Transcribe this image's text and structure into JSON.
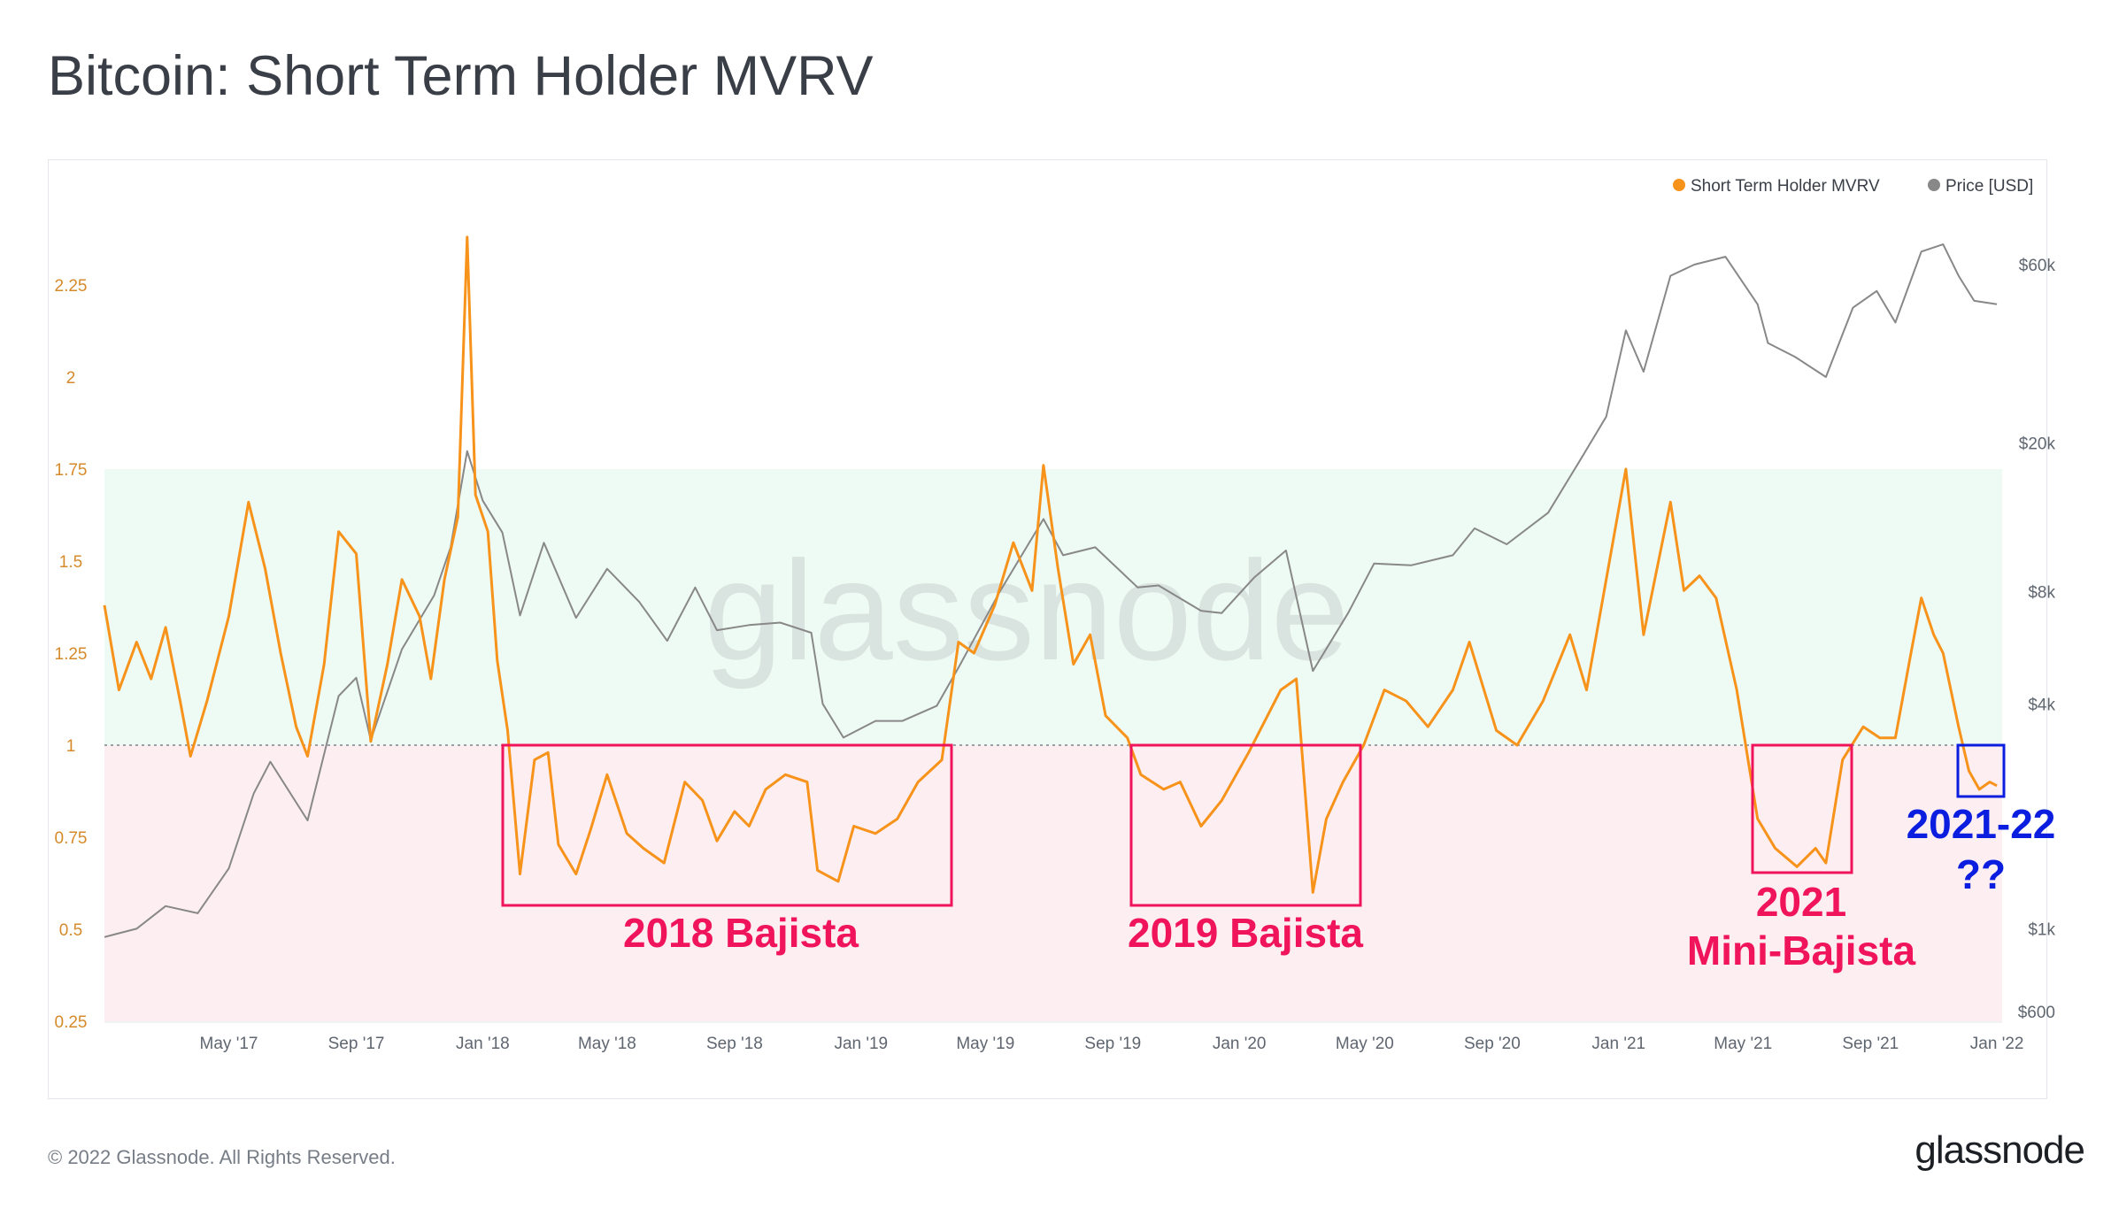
{
  "title": "Bitcoin: Short Term Holder MVRV",
  "footer": {
    "copyright": "© 2022 Glassnode. All Rights Reserved.",
    "logo": "glassnode"
  },
  "watermark": "glassnode",
  "colors": {
    "mvrv": "#f7931a",
    "price": "#888888",
    "annotation_red": "#f0145a",
    "annotation_blue": "#0b1ee0",
    "zone_green": "#eefaf4",
    "zone_red": "#fdeef2"
  },
  "legend": {
    "mvrv": "Short Term Holder MVRV",
    "price": "Price [USD]"
  },
  "annotations": {
    "a2018": "2018 Bajista",
    "a2019": "2019 Bajista",
    "a2021_1": "2021",
    "a2021_2": "Mini-Bajista",
    "a2122_1": "2021-22",
    "a2122_2": "??"
  },
  "chart_data": {
    "type": "line",
    "x_tick_labels": [
      "May '17",
      "Sep '17",
      "Jan '18",
      "May '18",
      "Sep '18",
      "Jan '19",
      "May '19",
      "Sep '19",
      "Jan '20",
      "May '20",
      "Sep '20",
      "Jan '21",
      "May '21",
      "Sep '21",
      "Jan '22"
    ],
    "y_left_ticks": [
      "2.25",
      "2",
      "1.75",
      "1.5",
      "1.25",
      "1",
      "0.75",
      "0.5",
      "0.25"
    ],
    "y_right_ticks": [
      "$60k",
      "$20k",
      "$8k",
      "$4k",
      "$1k",
      "$600"
    ],
    "ylim_left": [
      0.25,
      2.4
    ],
    "ylim_right_log_usd": [
      600,
      70000
    ],
    "zones": [
      {
        "from": 1.0,
        "to": 1.75,
        "label": ""
      },
      {
        "from": 0.25,
        "to": 1.0,
        "label": ""
      }
    ],
    "series": [
      {
        "name": "Short Term Holder MVRV",
        "axis": "left",
        "points": [
          [
            "2017-01-01",
            1.38
          ],
          [
            "2017-01-15",
            1.15
          ],
          [
            "2017-02-01",
            1.28
          ],
          [
            "2017-02-15",
            1.18
          ],
          [
            "2017-03-01",
            1.32
          ],
          [
            "2017-03-15",
            1.12
          ],
          [
            "2017-03-25",
            0.97
          ],
          [
            "2017-04-10",
            1.12
          ],
          [
            "2017-05-01",
            1.35
          ],
          [
            "2017-05-20",
            1.66
          ],
          [
            "2017-06-05",
            1.48
          ],
          [
            "2017-06-20",
            1.25
          ],
          [
            "2017-07-05",
            1.05
          ],
          [
            "2017-07-16",
            0.97
          ],
          [
            "2017-08-01",
            1.22
          ],
          [
            "2017-08-15",
            1.58
          ],
          [
            "2017-09-01",
            1.52
          ],
          [
            "2017-09-15",
            1.01
          ],
          [
            "2017-10-01",
            1.22
          ],
          [
            "2017-10-15",
            1.45
          ],
          [
            "2017-11-01",
            1.35
          ],
          [
            "2017-11-12",
            1.18
          ],
          [
            "2017-11-25",
            1.45
          ],
          [
            "2017-12-08",
            1.62
          ],
          [
            "2017-12-17",
            2.38
          ],
          [
            "2017-12-25",
            1.68
          ],
          [
            "2018-01-06",
            1.58
          ],
          [
            "2018-01-15",
            1.23
          ],
          [
            "2018-01-25",
            1.04
          ],
          [
            "2018-02-06",
            0.65
          ],
          [
            "2018-02-20",
            0.96
          ],
          [
            "2018-03-05",
            0.98
          ],
          [
            "2018-03-15",
            0.73
          ],
          [
            "2018-04-01",
            0.65
          ],
          [
            "2018-04-15",
            0.77
          ],
          [
            "2018-05-01",
            0.92
          ],
          [
            "2018-05-20",
            0.76
          ],
          [
            "2018-06-05",
            0.72
          ],
          [
            "2018-06-25",
            0.68
          ],
          [
            "2018-07-15",
            0.9
          ],
          [
            "2018-08-01",
            0.85
          ],
          [
            "2018-08-15",
            0.74
          ],
          [
            "2018-09-01",
            0.82
          ],
          [
            "2018-09-15",
            0.78
          ],
          [
            "2018-10-01",
            0.88
          ],
          [
            "2018-10-20",
            0.92
          ],
          [
            "2018-11-10",
            0.9
          ],
          [
            "2018-11-20",
            0.66
          ],
          [
            "2018-12-10",
            0.63
          ],
          [
            "2018-12-25",
            0.78
          ],
          [
            "2019-01-15",
            0.76
          ],
          [
            "2019-02-05",
            0.8
          ],
          [
            "2019-02-25",
            0.9
          ],
          [
            "2019-03-20",
            0.96
          ],
          [
            "2019-04-05",
            1.28
          ],
          [
            "2019-04-20",
            1.25
          ],
          [
            "2019-05-10",
            1.38
          ],
          [
            "2019-05-28",
            1.55
          ],
          [
            "2019-06-15",
            1.42
          ],
          [
            "2019-06-26",
            1.76
          ],
          [
            "2019-07-10",
            1.48
          ],
          [
            "2019-07-25",
            1.22
          ],
          [
            "2019-08-10",
            1.3
          ],
          [
            "2019-08-25",
            1.08
          ],
          [
            "2019-09-15",
            1.02
          ],
          [
            "2019-09-28",
            0.92
          ],
          [
            "2019-10-20",
            0.88
          ],
          [
            "2019-11-05",
            0.9
          ],
          [
            "2019-11-25",
            0.78
          ],
          [
            "2019-12-15",
            0.85
          ],
          [
            "2020-01-10",
            0.98
          ],
          [
            "2020-02-10",
            1.15
          ],
          [
            "2020-02-25",
            1.18
          ],
          [
            "2020-03-12",
            0.6
          ],
          [
            "2020-03-25",
            0.8
          ],
          [
            "2020-04-10",
            0.9
          ],
          [
            "2020-04-30",
            1.0
          ],
          [
            "2020-05-20",
            1.15
          ],
          [
            "2020-06-10",
            1.12
          ],
          [
            "2020-07-01",
            1.05
          ],
          [
            "2020-07-25",
            1.15
          ],
          [
            "2020-08-10",
            1.28
          ],
          [
            "2020-09-05",
            1.04
          ],
          [
            "2020-09-25",
            1.0
          ],
          [
            "2020-10-20",
            1.12
          ],
          [
            "2020-11-15",
            1.3
          ],
          [
            "2020-12-01",
            1.15
          ],
          [
            "2020-12-20",
            1.45
          ],
          [
            "2021-01-08",
            1.75
          ],
          [
            "2021-01-25",
            1.3
          ],
          [
            "2021-02-20",
            1.66
          ],
          [
            "2021-03-05",
            1.42
          ],
          [
            "2021-03-20",
            1.46
          ],
          [
            "2021-04-05",
            1.4
          ],
          [
            "2021-04-25",
            1.15
          ],
          [
            "2021-05-15",
            0.8
          ],
          [
            "2021-06-01",
            0.72
          ],
          [
            "2021-06-22",
            0.67
          ],
          [
            "2021-07-10",
            0.72
          ],
          [
            "2021-07-20",
            0.68
          ],
          [
            "2021-08-05",
            0.96
          ],
          [
            "2021-08-25",
            1.05
          ],
          [
            "2021-09-10",
            1.02
          ],
          [
            "2021-09-25",
            1.02
          ],
          [
            "2021-10-10",
            1.25
          ],
          [
            "2021-10-20",
            1.4
          ],
          [
            "2021-11-01",
            1.3
          ],
          [
            "2021-11-10",
            1.25
          ],
          [
            "2021-11-25",
            1.05
          ],
          [
            "2021-12-05",
            0.93
          ],
          [
            "2021-12-15",
            0.88
          ],
          [
            "2021-12-25",
            0.9
          ],
          [
            "2022-01-01",
            0.89
          ]
        ]
      },
      {
        "name": "Price [USD]",
        "axis": "right",
        "points": [
          [
            "2017-01-01",
            950
          ],
          [
            "2017-02-01",
            1000
          ],
          [
            "2017-03-01",
            1150
          ],
          [
            "2017-04-01",
            1100
          ],
          [
            "2017-05-01",
            1450
          ],
          [
            "2017-05-25",
            2300
          ],
          [
            "2017-06-10",
            2800
          ],
          [
            "2017-07-16",
            1950
          ],
          [
            "2017-08-15",
            4200
          ],
          [
            "2017-09-01",
            4700
          ],
          [
            "2017-09-15",
            3200
          ],
          [
            "2017-10-15",
            5600
          ],
          [
            "2017-11-15",
            7800
          ],
          [
            "2017-12-01",
            10500
          ],
          [
            "2017-12-17",
            19000
          ],
          [
            "2018-01-01",
            14000
          ],
          [
            "2018-01-20",
            11500
          ],
          [
            "2018-02-06",
            6900
          ],
          [
            "2018-03-01",
            10800
          ],
          [
            "2018-04-01",
            6800
          ],
          [
            "2018-05-01",
            9200
          ],
          [
            "2018-06-01",
            7500
          ],
          [
            "2018-06-28",
            5900
          ],
          [
            "2018-07-25",
            8200
          ],
          [
            "2018-08-15",
            6300
          ],
          [
            "2018-09-15",
            6500
          ],
          [
            "2018-10-15",
            6600
          ],
          [
            "2018-11-14",
            6200
          ],
          [
            "2018-11-25",
            4000
          ],
          [
            "2018-12-15",
            3250
          ],
          [
            "2019-01-15",
            3600
          ],
          [
            "2019-02-10",
            3600
          ],
          [
            "2019-03-15",
            3950
          ],
          [
            "2019-04-05",
            5000
          ],
          [
            "2019-05-15",
            8000
          ],
          [
            "2019-06-26",
            12500
          ],
          [
            "2019-07-15",
            10000
          ],
          [
            "2019-08-15",
            10500
          ],
          [
            "2019-09-25",
            8200
          ],
          [
            "2019-10-15",
            8300
          ],
          [
            "2019-11-25",
            7100
          ],
          [
            "2019-12-15",
            7000
          ],
          [
            "2020-01-15",
            8700
          ],
          [
            "2020-02-15",
            10300
          ],
          [
            "2020-03-12",
            4900
          ],
          [
            "2020-04-15",
            7000
          ],
          [
            "2020-05-10",
            9500
          ],
          [
            "2020-06-15",
            9400
          ],
          [
            "2020-07-25",
            10000
          ],
          [
            "2020-08-15",
            11800
          ],
          [
            "2020-09-15",
            10700
          ],
          [
            "2020-10-25",
            13000
          ],
          [
            "2020-11-25",
            18000
          ],
          [
            "2020-12-20",
            23500
          ],
          [
            "2021-01-08",
            40000
          ],
          [
            "2021-01-25",
            31000
          ],
          [
            "2021-02-20",
            56000
          ],
          [
            "2021-03-15",
            60000
          ],
          [
            "2021-04-14",
            63000
          ],
          [
            "2021-05-15",
            47000
          ],
          [
            "2021-05-25",
            37000
          ],
          [
            "2021-06-20",
            34000
          ],
          [
            "2021-07-20",
            30000
          ],
          [
            "2021-08-15",
            46000
          ],
          [
            "2021-09-07",
            51000
          ],
          [
            "2021-09-25",
            42000
          ],
          [
            "2021-10-20",
            65000
          ],
          [
            "2021-11-10",
            68000
          ],
          [
            "2021-11-25",
            56000
          ],
          [
            "2021-12-10",
            48000
          ],
          [
            "2022-01-01",
            47000
          ]
        ]
      }
    ]
  }
}
